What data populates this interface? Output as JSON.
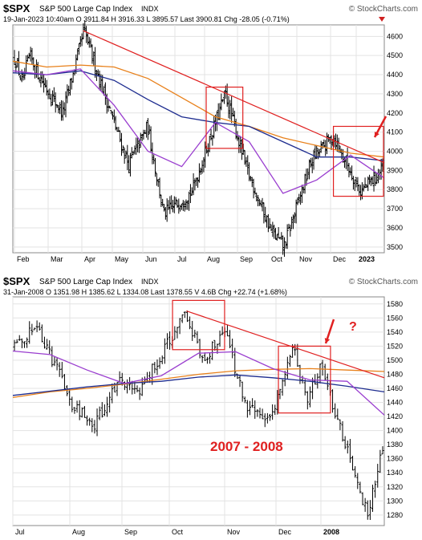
{
  "charts": [
    {
      "id": "top",
      "symbol": "$SPX",
      "name": "S&P 500 Large Cap Index",
      "exchange": "INDX",
      "watermark": "© StockCharts.com",
      "quote_line": "19-Jan-2023 10:40am   O 3911.84  H 3916.33  L 3895.57  Last 3900.81  Chg -28.05 (-0.71%)",
      "x_labels": [
        "Feb",
        "Mar",
        "Apr",
        "May",
        "Jun",
        "Jul",
        "Aug",
        "Sep",
        "Oct",
        "Nov",
        "Dec",
        "2023"
      ],
      "y_ticks": [
        "4600",
        "4500",
        "4400",
        "4300",
        "4200",
        "4100",
        "4000",
        "3900",
        "3800",
        "3700",
        "3600",
        "3500"
      ]
    },
    {
      "id": "bottom",
      "symbol": "$SPX",
      "name": "S&P 500 Large Cap Index",
      "exchange": "INDX",
      "watermark": "© StockCharts.com",
      "quote_line": "31-Jan-2008   O 1351.98  H 1385.62  L 1334.08  Last 1378.55  V 4.6B  Chg +22.74 (+1.68%)",
      "x_labels": [
        "Jul",
        "Aug",
        "Sep",
        "Oct",
        "Nov",
        "Dec",
        "2008"
      ],
      "y_ticks": [
        "1580",
        "1560",
        "1540",
        "1520",
        "1500",
        "1480",
        "1460",
        "1440",
        "1420",
        "1400",
        "1380",
        "1360",
        "1340",
        "1320",
        "1300",
        "1280"
      ],
      "annotation_text": "2007 - 2008",
      "question_mark": "?"
    }
  ],
  "chart_data": [
    {
      "type": "ohlc",
      "symbol": "$SPX",
      "ylim": [
        3470,
        4660
      ],
      "y_ticks": [
        3500,
        3600,
        3700,
        3800,
        3900,
        4000,
        4100,
        4200,
        4300,
        4400,
        4500,
        4600
      ],
      "approx_close_path": [
        {
          "date": "2022-01-20",
          "close": 4480
        },
        {
          "date": "2022-01-27",
          "close": 4350
        },
        {
          "date": "2022-02-03",
          "close": 4500
        },
        {
          "date": "2022-02-10",
          "close": 4420
        },
        {
          "date": "2022-02-24",
          "close": 4290
        },
        {
          "date": "2022-03-08",
          "close": 4200
        },
        {
          "date": "2022-03-29",
          "close": 4630
        },
        {
          "date": "2022-04-12",
          "close": 4400
        },
        {
          "date": "2022-04-29",
          "close": 4130
        },
        {
          "date": "2022-05-12",
          "close": 3930
        },
        {
          "date": "2022-05-31",
          "close": 4130
        },
        {
          "date": "2022-06-16",
          "close": 3670
        },
        {
          "date": "2022-07-14",
          "close": 3790
        },
        {
          "date": "2022-08-16",
          "close": 4300
        },
        {
          "date": "2022-09-06",
          "close": 3910
        },
        {
          "date": "2022-09-30",
          "close": 3590
        },
        {
          "date": "2022-10-13",
          "close": 3500
        },
        {
          "date": "2022-11-10",
          "close": 3960
        },
        {
          "date": "2022-12-01",
          "close": 4080
        },
        {
          "date": "2022-12-28",
          "close": 3790
        },
        {
          "date": "2023-01-19",
          "close": 3900
        }
      ],
      "moving_averages": [
        {
          "name": "orange",
          "color": "#e8801a",
          "values": [
            4470,
            4440,
            4450,
            4440,
            4380,
            4280,
            4180,
            4130,
            4070,
            4030,
            3990,
            3970
          ]
        },
        {
          "name": "blue",
          "color": "#1d2c8f",
          "values": [
            4410,
            4400,
            4420,
            4370,
            4270,
            4180,
            4150,
            4130,
            4050,
            3970,
            3970,
            3950
          ]
        },
        {
          "name": "violet",
          "color": "#9a3ecf",
          "values": [
            4420,
            4400,
            4430,
            4240,
            4000,
            3920,
            4150,
            4050,
            3780,
            3850,
            3980,
            3860
          ]
        }
      ],
      "trendline": {
        "color": "#e02020",
        "from": {
          "date": "2022-03-29",
          "value": 4630
        },
        "to": {
          "date": "2023-01-19",
          "value": 3940
        }
      },
      "highlight_boxes": [
        {
          "from": "2022-07-28",
          "to": "2022-09-02",
          "low": 4015,
          "high": 4335
        },
        {
          "from": "2022-11-30",
          "to": "2023-01-19",
          "low": 3765,
          "high": 4130
        }
      ]
    },
    {
      "type": "ohlc",
      "symbol": "$SPX",
      "ylim": [
        1265,
        1590
      ],
      "y_ticks": [
        1280,
        1300,
        1320,
        1340,
        1360,
        1380,
        1400,
        1420,
        1440,
        1460,
        1480,
        1500,
        1520,
        1540,
        1560,
        1580
      ],
      "approx_close_path": [
        {
          "date": "2007-07-02",
          "close": 1520
        },
        {
          "date": "2007-07-13",
          "close": 1552
        },
        {
          "date": "2007-07-26",
          "close": 1485
        },
        {
          "date": "2007-08-03",
          "close": 1440
        },
        {
          "date": "2007-08-16",
          "close": 1405
        },
        {
          "date": "2007-08-31",
          "close": 1475
        },
        {
          "date": "2007-09-10",
          "close": 1450
        },
        {
          "date": "2007-09-28",
          "close": 1525
        },
        {
          "date": "2007-10-09",
          "close": 1565
        },
        {
          "date": "2007-10-19",
          "close": 1500
        },
        {
          "date": "2007-10-31",
          "close": 1545
        },
        {
          "date": "2007-11-12",
          "close": 1440
        },
        {
          "date": "2007-11-26",
          "close": 1410
        },
        {
          "date": "2007-12-10",
          "close": 1515
        },
        {
          "date": "2007-12-18",
          "close": 1445
        },
        {
          "date": "2007-12-26",
          "close": 1495
        },
        {
          "date": "2008-01-08",
          "close": 1390
        },
        {
          "date": "2008-01-22",
          "close": 1280
        },
        {
          "date": "2008-01-31",
          "close": 1378
        }
      ],
      "moving_averages": [
        {
          "name": "orange",
          "color": "#e8801a",
          "values": [
            1447,
            1455,
            1460,
            1466,
            1473,
            1480,
            1485,
            1487,
            1488,
            1486,
            1484
          ]
        },
        {
          "name": "blue",
          "color": "#1d2c8f",
          "values": [
            1450,
            1456,
            1462,
            1467,
            1470,
            1476,
            1479,
            1475,
            1470,
            1463,
            1455
          ]
        },
        {
          "name": "violet",
          "color": "#9a3ecf",
          "values": [
            1513,
            1508,
            1486,
            1467,
            1478,
            1510,
            1512,
            1488,
            1472,
            1470,
            1422
          ]
        }
      ],
      "trendline": {
        "color": "#e02020",
        "from": {
          "date": "2007-10-09",
          "value": 1570
        },
        "to": {
          "date": "2008-01-31",
          "value": 1475
        }
      },
      "highlight_boxes": [
        {
          "from": "2007-10-01",
          "to": "2007-10-31",
          "low": 1515,
          "high": 1585
        },
        {
          "from": "2007-12-01",
          "to": "2007-12-31",
          "low": 1425,
          "high": 1520
        }
      ]
    }
  ]
}
